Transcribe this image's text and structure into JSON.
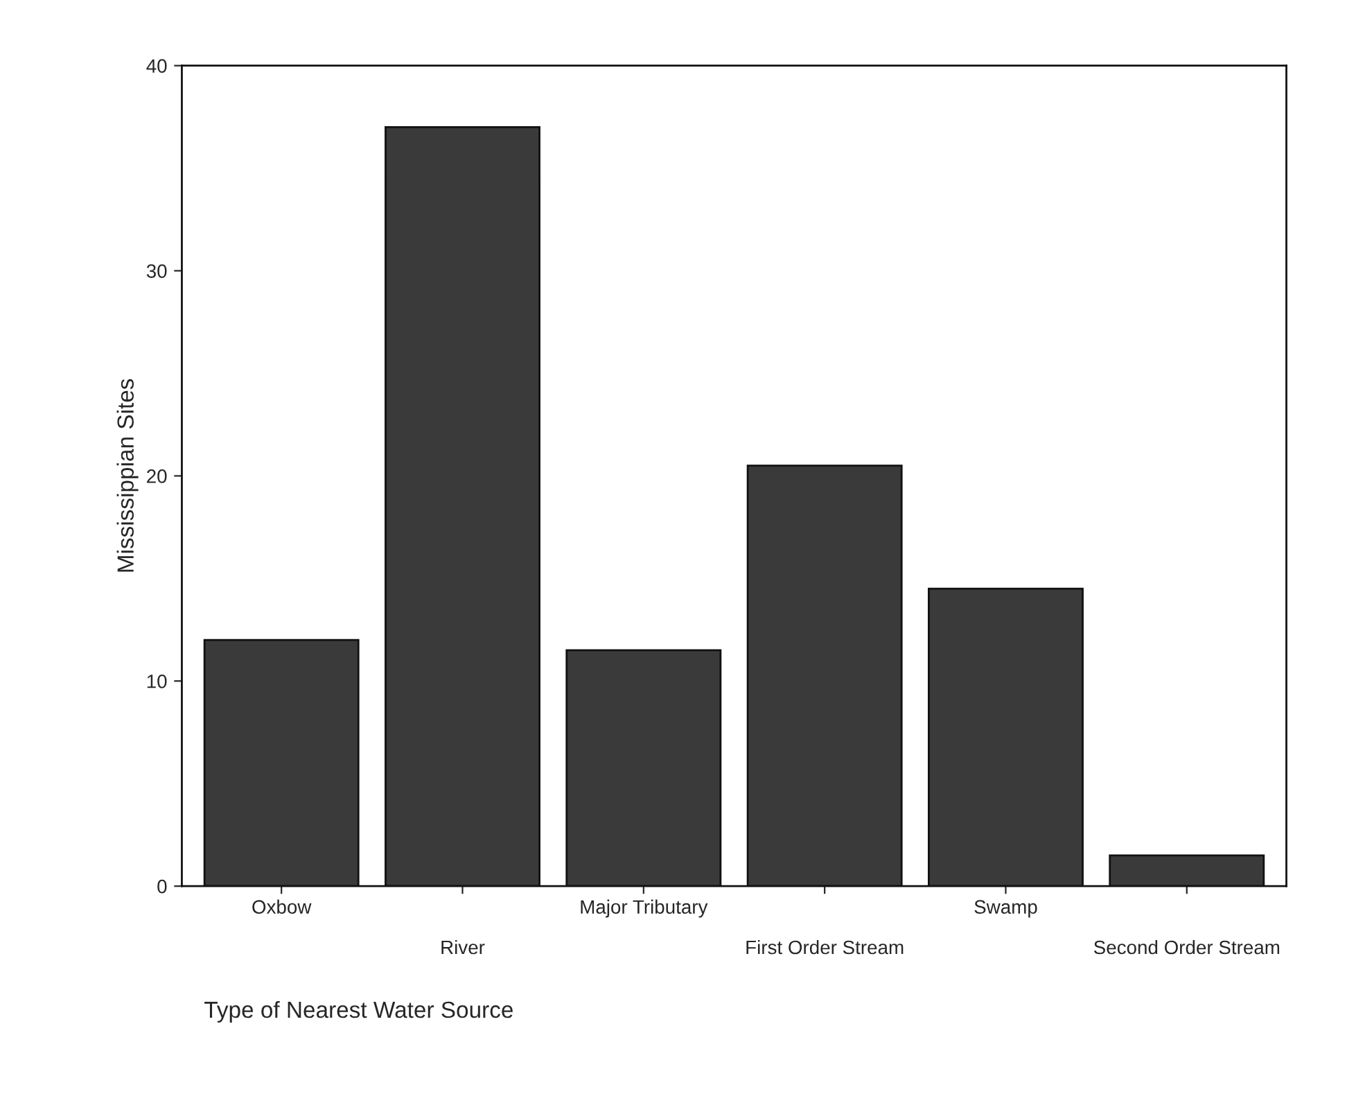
{
  "chart_data": {
    "type": "bar",
    "xlabel": "Type of Nearest Water Source",
    "ylabel": "Mississippian Sites",
    "categories": [
      "Oxbow",
      "River",
      "Major Tributary",
      "First Order Stream",
      "Swamp",
      "Second Order Stream"
    ],
    "values": [
      12,
      37,
      11.5,
      20.5,
      14.5,
      1.5
    ],
    "color": "#3a3a3a",
    "ylim": [
      0,
      40
    ],
    "yticks": [
      0,
      10,
      20,
      30,
      40
    ],
    "grid": false
  }
}
